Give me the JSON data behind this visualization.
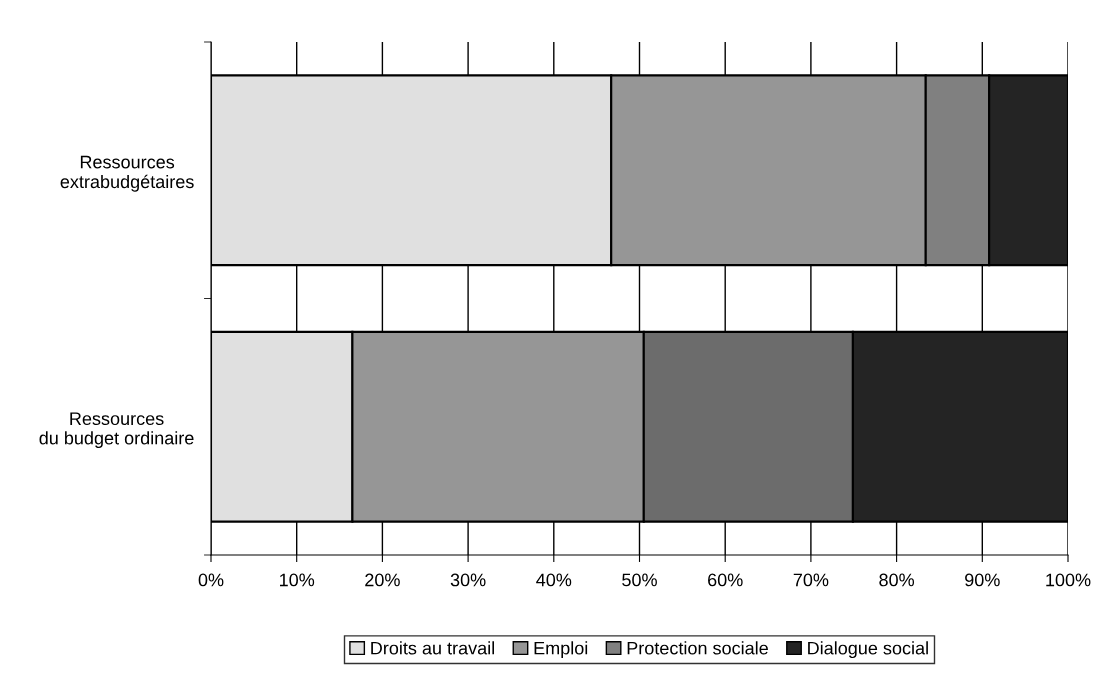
{
  "chart_data": {
    "type": "bar",
    "orientation": "horizontal",
    "stacked": true,
    "categories": [
      "Ressources\nextrabudgétaires",
      "Ressources\ndu budget ordinaire"
    ],
    "series": [
      {
        "name": "Droits au travail",
        "color": "#e0e0e0",
        "values": [
          46.7,
          16.5
        ]
      },
      {
        "name": "Emploi",
        "color": "#969696",
        "values": [
          36.7,
          34.0
        ]
      },
      {
        "name": "Protection sociale",
        "color": "#808080",
        "colors": [
          "#808080",
          "#6c6c6c"
        ],
        "values": [
          7.4,
          24.4
        ]
      },
      {
        "name": "Dialogue social",
        "color": "#242424",
        "values": [
          9.2,
          25.1
        ]
      }
    ],
    "xlim": [
      0,
      100
    ],
    "xticks": [
      {
        "value": 0,
        "label": "0%"
      },
      {
        "value": 10,
        "label": "10%"
      },
      {
        "value": 20,
        "label": "20%"
      },
      {
        "value": 30,
        "label": "30%"
      },
      {
        "value": 40,
        "label": "40%"
      },
      {
        "value": 50,
        "label": "50%"
      },
      {
        "value": 60,
        "label": "60%"
      },
      {
        "value": 70,
        "label": "70%"
      },
      {
        "value": 80,
        "label": "80%"
      },
      {
        "value": 90,
        "label": "90%"
      },
      {
        "value": 100,
        "label": "100%"
      }
    ],
    "grid": "x",
    "legend": "bottom"
  }
}
